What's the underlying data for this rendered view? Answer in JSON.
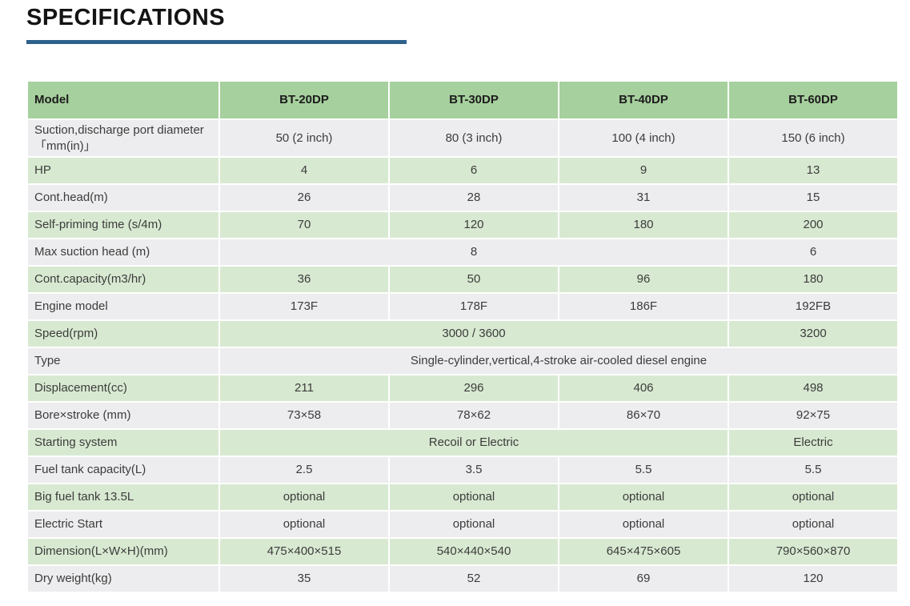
{
  "page": {
    "title": "SPECIFICATIONS",
    "accent_color": "#2d618c"
  },
  "table": {
    "colors": {
      "header_bg": "#a6d09d",
      "row_green": "#d8e9d1",
      "row_gray": "#edecee",
      "text": "#3c3c3c"
    },
    "header": {
      "model_label": "Model",
      "columns": [
        "BT-20DP",
        "BT-30DP",
        "BT-40DP",
        "BT-60DP"
      ]
    },
    "rows": [
      {
        "label": "Suction,discharge port diameter 「mm(in)」",
        "cells": [
          {
            "text": "50 (2 inch)"
          },
          {
            "text": "80 (3 inch)"
          },
          {
            "text": "100 (4 inch)"
          },
          {
            "text": "150 (6 inch)"
          }
        ]
      },
      {
        "label": "HP",
        "cells": [
          {
            "text": "4"
          },
          {
            "text": "6"
          },
          {
            "text": "9"
          },
          {
            "text": "13"
          }
        ]
      },
      {
        "label": "Cont.head(m)",
        "cells": [
          {
            "text": "26"
          },
          {
            "text": "28"
          },
          {
            "text": "31"
          },
          {
            "text": "15"
          }
        ]
      },
      {
        "label": "Self-priming time (s/4m)",
        "cells": [
          {
            "text": "70"
          },
          {
            "text": "120"
          },
          {
            "text": "180"
          },
          {
            "text": "200"
          }
        ]
      },
      {
        "label": "Max suction head (m)",
        "cells": [
          {
            "text": "8",
            "colspan": 3
          },
          {
            "text": "6"
          }
        ]
      },
      {
        "label": "Cont.capacity(m3/hr)",
        "cells": [
          {
            "text": "36"
          },
          {
            "text": "50"
          },
          {
            "text": "96"
          },
          {
            "text": "180"
          }
        ]
      },
      {
        "label": "Engine model",
        "cells": [
          {
            "text": "173F"
          },
          {
            "text": "178F"
          },
          {
            "text": "186F"
          },
          {
            "text": "192FB"
          }
        ]
      },
      {
        "label": "Speed(rpm)",
        "cells": [
          {
            "text": "3000 / 3600",
            "colspan": 3
          },
          {
            "text": "3200"
          }
        ]
      },
      {
        "label": "Type",
        "cells": [
          {
            "text": "Single-cylinder,vertical,4-stroke air-cooled diesel engine",
            "colspan": 4
          }
        ]
      },
      {
        "label": "Displacement(cc)",
        "cells": [
          {
            "text": "211"
          },
          {
            "text": "296"
          },
          {
            "text": "406"
          },
          {
            "text": "498"
          }
        ]
      },
      {
        "label": "Bore×stroke (mm)",
        "cells": [
          {
            "text": "73×58"
          },
          {
            "text": "78×62"
          },
          {
            "text": "86×70"
          },
          {
            "text": "92×75"
          }
        ]
      },
      {
        "label": "Starting system",
        "cells": [
          {
            "text": "Recoil or Electric",
            "colspan": 3
          },
          {
            "text": "Electric"
          }
        ]
      },
      {
        "label": "Fuel tank capacity(L)",
        "cells": [
          {
            "text": "2.5"
          },
          {
            "text": "3.5"
          },
          {
            "text": "5.5"
          },
          {
            "text": "5.5"
          }
        ]
      },
      {
        "label": "Big fuel tank 13.5L",
        "cells": [
          {
            "text": "optional"
          },
          {
            "text": "optional"
          },
          {
            "text": "optional"
          },
          {
            "text": "optional"
          }
        ]
      },
      {
        "label": "Electric Start",
        "cells": [
          {
            "text": "optional"
          },
          {
            "text": "optional"
          },
          {
            "text": "optional"
          },
          {
            "text": "optional"
          }
        ]
      },
      {
        "label": "Dimension(L×W×H)(mm)",
        "cells": [
          {
            "text": "475×400×515"
          },
          {
            "text": "540×440×540"
          },
          {
            "text": "645×475×605"
          },
          {
            "text": "790×560×870"
          }
        ]
      },
      {
        "label": "Dry weight(kg)",
        "cells": [
          {
            "text": "35"
          },
          {
            "text": "52"
          },
          {
            "text": "69"
          },
          {
            "text": "120"
          }
        ]
      }
    ]
  }
}
